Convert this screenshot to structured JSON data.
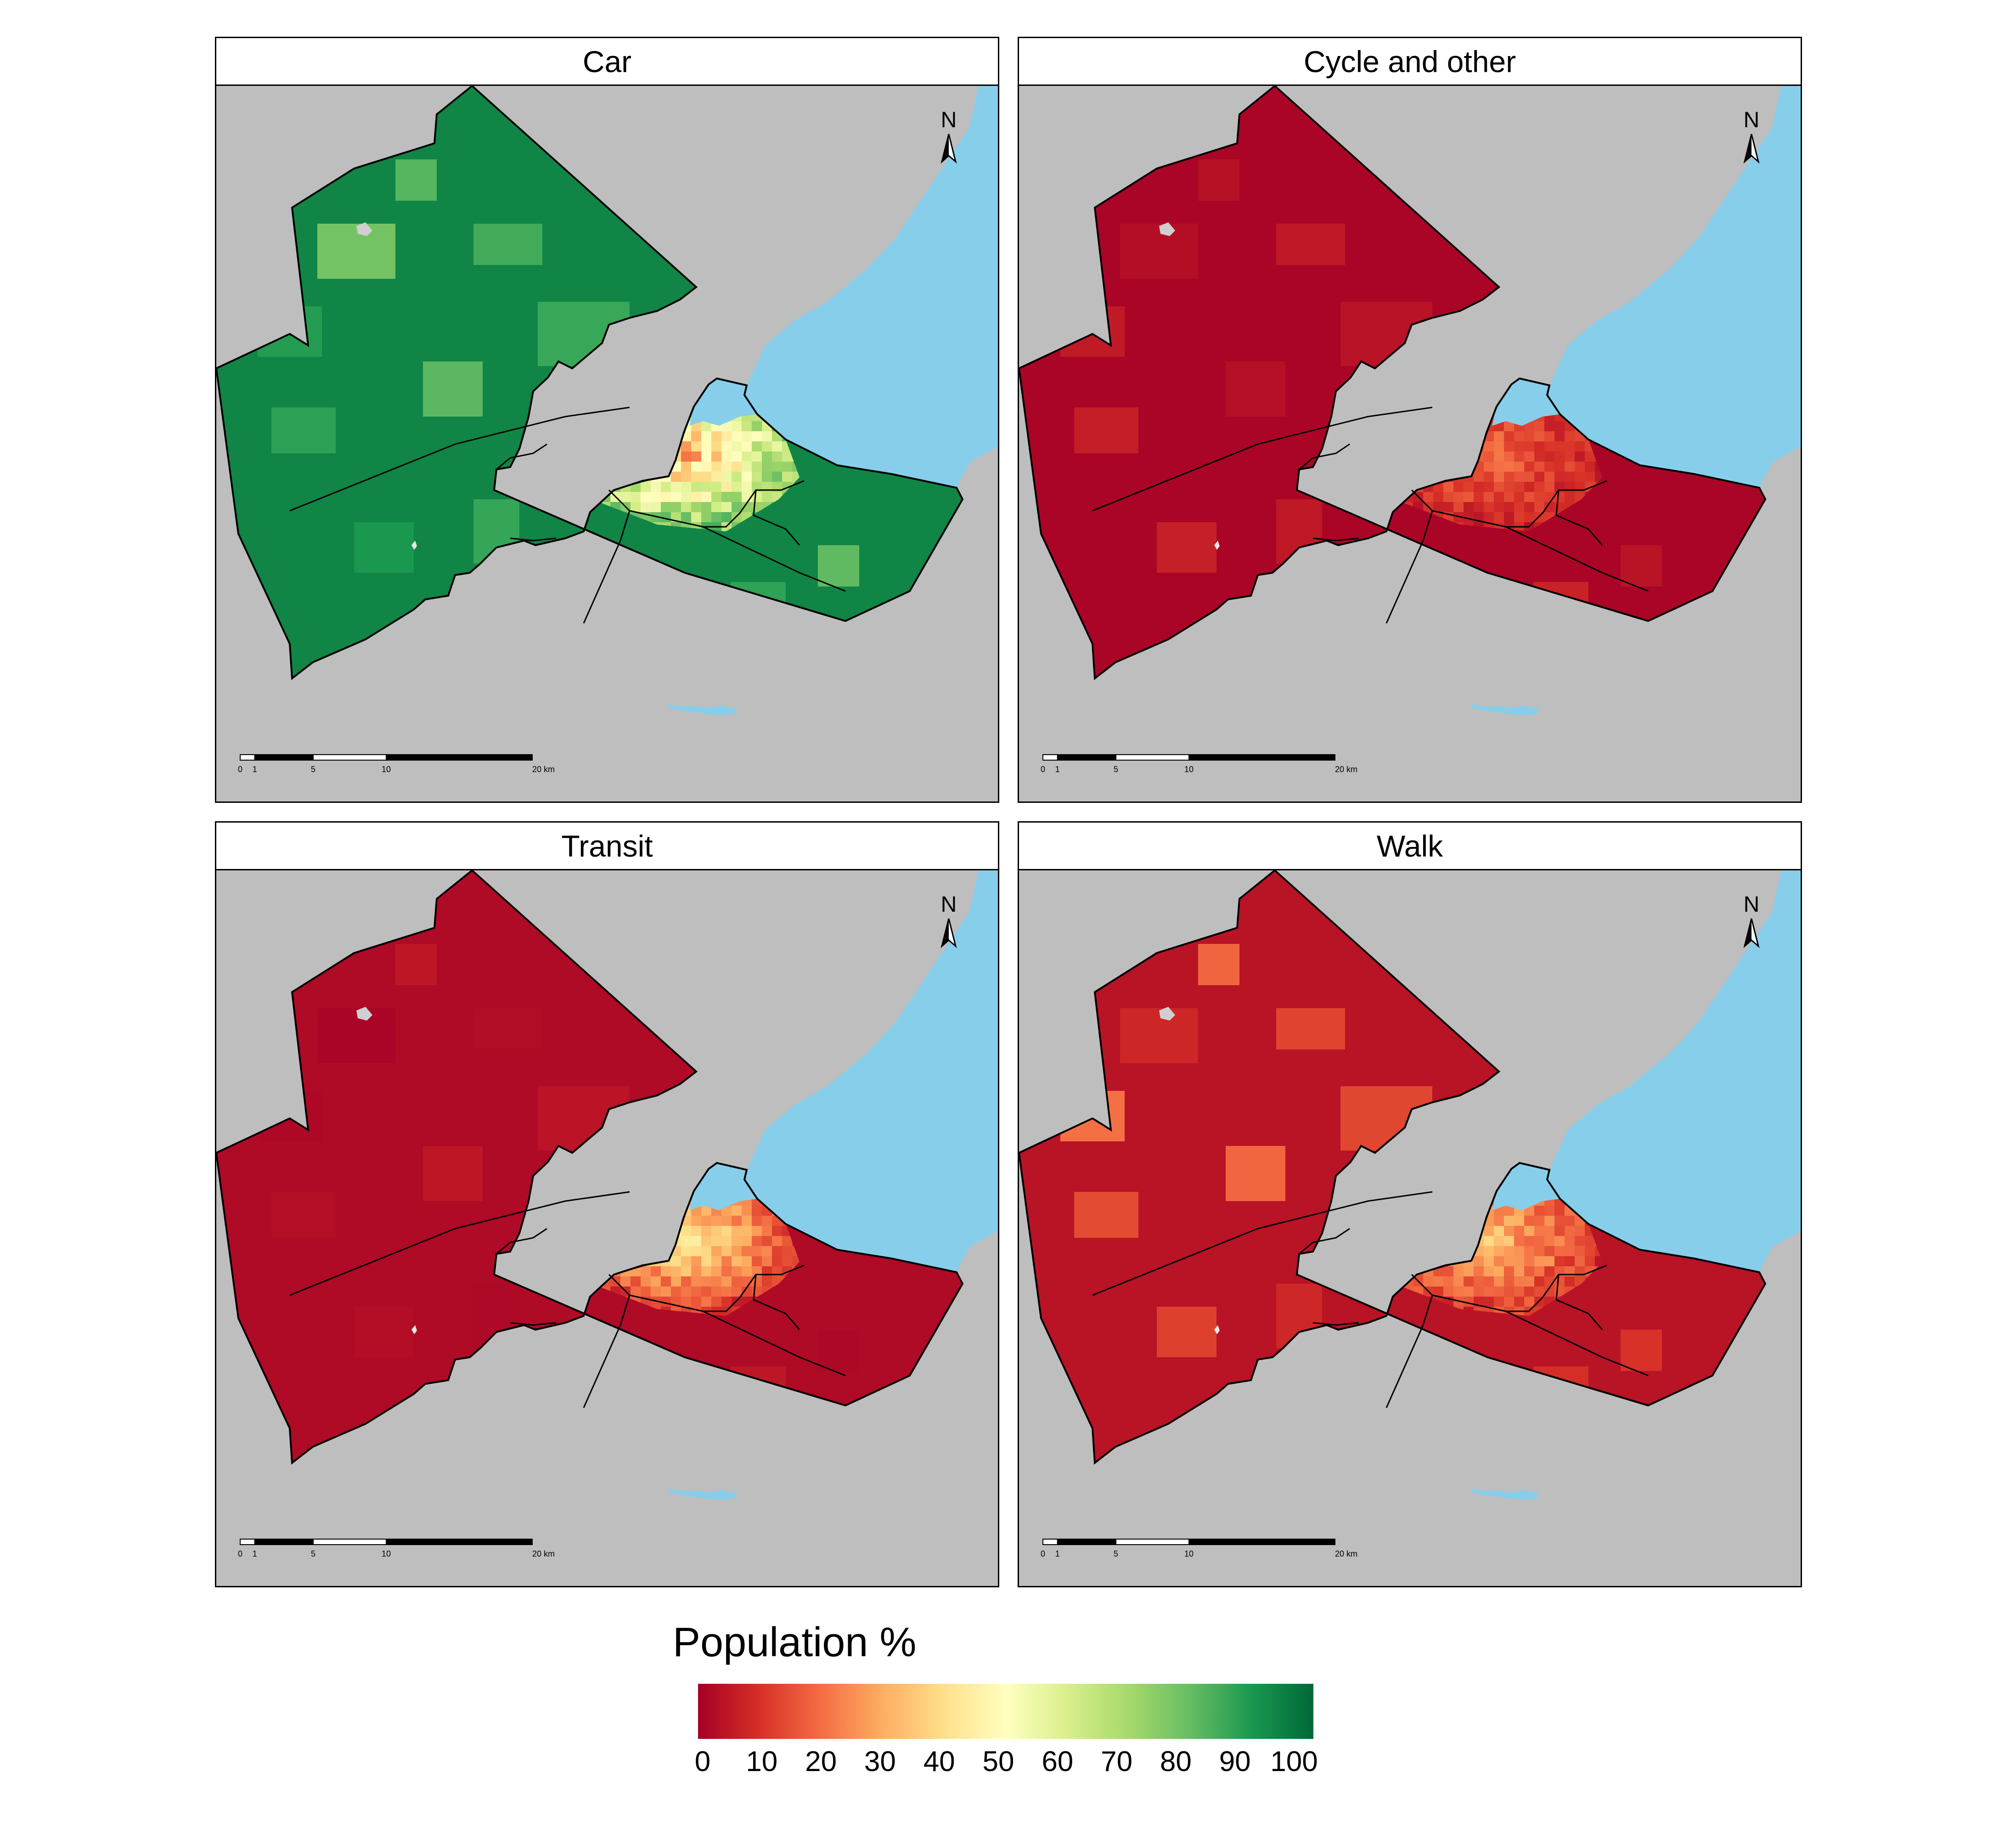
{
  "panels": [
    {
      "title": "Car",
      "mode": "car"
    },
    {
      "title": "Cycle and other",
      "mode": "cycle"
    },
    {
      "title": "Transit",
      "mode": "transit"
    },
    {
      "title": "Walk",
      "mode": "walk"
    }
  ],
  "north_arrow_label": "N",
  "scale_bar": {
    "labels": [
      "0",
      "1",
      "5",
      "10",
      "20 km"
    ]
  },
  "legend": {
    "title": "Population %",
    "ticks": [
      "0",
      "10",
      "20",
      "30",
      "40",
      "50",
      "60",
      "70",
      "80",
      "90",
      "100"
    ],
    "colors": [
      "#a50026",
      "#d73027",
      "#f46d43",
      "#fdae61",
      "#fee08b",
      "#ffffbf",
      "#d9ef8b",
      "#a6d96a",
      "#66bd63",
      "#1a9850",
      "#006837"
    ]
  },
  "map_colors": {
    "background": "#bebebe",
    "water": "#87ceeb"
  }
}
